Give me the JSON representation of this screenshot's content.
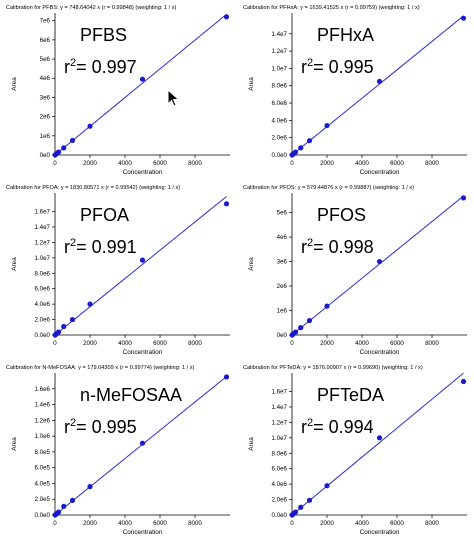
{
  "colors": {
    "line": "#2b2bd6",
    "point": "#1a1acc",
    "axis": "#000000",
    "label": "#000000",
    "background": "#ffffff"
  },
  "icons": {
    "cursor": "mouse-pointer-icon"
  },
  "chart_data": [
    {
      "type": "scatter",
      "header": "Calibration for PFBS: y = 748.64042 x (r = 0.99848)  (weighting: 1 / x)",
      "analyte": "PFBS",
      "r2_prefix": "r",
      "r2_sup": "2",
      "r2_value": "= 0.997",
      "xlabel": "Concentration",
      "ylabel": "Area",
      "xlim": [
        0,
        10000
      ],
      "ylim": [
        0,
        7400000
      ],
      "xticks": [
        0,
        2000,
        4000,
        6000,
        8000
      ],
      "xtick_labels": [
        "0",
        "2000",
        "4000",
        "6000",
        "8000"
      ],
      "yticks": [
        0,
        1000000,
        2000000,
        3000000,
        4000000,
        5000000,
        6000000,
        7000000
      ],
      "ytick_labels": [
        "0e0",
        "1e6",
        "2e6",
        "3e6",
        "4e6",
        "5e6",
        "6e6",
        "7e6"
      ],
      "slope": 748.64042,
      "fit": {
        "x0": 0,
        "x1": 9800
      },
      "points": [
        {
          "x": 10,
          "y": 7000
        },
        {
          "x": 50,
          "y": 37000
        },
        {
          "x": 100,
          "y": 75000
        },
        {
          "x": 200,
          "y": 150000
        },
        {
          "x": 500,
          "y": 370000
        },
        {
          "x": 1000,
          "y": 760000
        },
        {
          "x": 2000,
          "y": 1500000
        },
        {
          "x": 5000,
          "y": 3950000
        },
        {
          "x": 9800,
          "y": 7200000
        }
      ]
    },
    {
      "type": "scatter",
      "header": "Calibration for PFHxA: y = 1639.41525 x (r = 0.99759)  (weighting: 1 / x)",
      "analyte": "PFHxA",
      "r2_prefix": "r",
      "r2_sup": "2",
      "r2_value": "= 0.995",
      "xlabel": "Concentration",
      "ylabel": "Area",
      "xlim": [
        0,
        10000
      ],
      "ylim": [
        0,
        16400000
      ],
      "xticks": [
        0,
        2000,
        4000,
        6000,
        8000
      ],
      "xtick_labels": [
        "0",
        "2000",
        "4000",
        "6000",
        "8000"
      ],
      "yticks": [
        0,
        2000000,
        4000000,
        6000000,
        8000000,
        10000000,
        12000000,
        14000000
      ],
      "ytick_labels": [
        "0.0e0",
        "2.0e6",
        "4.0e6",
        "6.0e6",
        "8.0e6",
        "1.0e7",
        "1.2e7",
        "1.4e7"
      ],
      "slope": 1639.41525,
      "fit": {
        "x0": 0,
        "x1": 9800
      },
      "points": [
        {
          "x": 10,
          "y": 16000
        },
        {
          "x": 50,
          "y": 80000
        },
        {
          "x": 100,
          "y": 160000
        },
        {
          "x": 200,
          "y": 330000
        },
        {
          "x": 500,
          "y": 830000
        },
        {
          "x": 1000,
          "y": 1650000
        },
        {
          "x": 2000,
          "y": 3400000
        },
        {
          "x": 5000,
          "y": 8500000
        },
        {
          "x": 9800,
          "y": 15800000
        }
      ]
    },
    {
      "type": "scatter",
      "header": "Calibration for PFOA: y = 1830.80571 x (r = 0.99542)  (weighting: 1 / x)",
      "analyte": "PFOA",
      "r2_prefix": "r",
      "r2_sup": "2",
      "r2_value": "= 0.991",
      "xlabel": "Concentration",
      "ylabel": "Area",
      "xlim": [
        0,
        10000
      ],
      "ylim": [
        0,
        18400000
      ],
      "xticks": [
        0,
        2000,
        4000,
        6000,
        8000
      ],
      "xtick_labels": [
        "0",
        "2000",
        "4000",
        "6000",
        "8000"
      ],
      "yticks": [
        0,
        2000000,
        4000000,
        6000000,
        8000000,
        10000000,
        12000000,
        14000000,
        16000000
      ],
      "ytick_labels": [
        "0.0e0",
        "2.0e6",
        "4.0e6",
        "6.0e6",
        "8.0e6",
        "1.0e7",
        "1.2e7",
        "1.4e7",
        "1.6e7"
      ],
      "slope": 1830.80571,
      "fit": {
        "x0": 0,
        "x1": 9800
      },
      "points": [
        {
          "x": 10,
          "y": 19000
        },
        {
          "x": 50,
          "y": 95000
        },
        {
          "x": 100,
          "y": 190000
        },
        {
          "x": 200,
          "y": 380000
        },
        {
          "x": 500,
          "y": 1100000
        },
        {
          "x": 1000,
          "y": 2000000
        },
        {
          "x": 2000,
          "y": 4000000
        },
        {
          "x": 5000,
          "y": 9700000
        },
        {
          "x": 9800,
          "y": 17000000
        }
      ]
    },
    {
      "type": "scatter",
      "header": "Calibration for PFOS: y = 579.44876 x (r = 0.99887)  (weighting: 1 / x)",
      "analyte": "PFOS",
      "r2_prefix": "r",
      "r2_sup": "2",
      "r2_value": "= 0.998",
      "xlabel": "Concentration",
      "ylabel": "Area",
      "xlim": [
        0,
        10000
      ],
      "ylim": [
        0,
        5800000
      ],
      "xticks": [
        0,
        2000,
        4000,
        6000,
        8000
      ],
      "xtick_labels": [
        "0",
        "2000",
        "4000",
        "6000",
        "8000"
      ],
      "yticks": [
        0,
        1000000,
        2000000,
        3000000,
        4000000,
        5000000
      ],
      "ytick_labels": [
        "0e0",
        "1e6",
        "2e6",
        "3e6",
        "4e6",
        "5e6"
      ],
      "slope": 579.44876,
      "fit": {
        "x0": 0,
        "x1": 9800
      },
      "points": [
        {
          "x": 10,
          "y": 6000
        },
        {
          "x": 50,
          "y": 29000
        },
        {
          "x": 100,
          "y": 58000
        },
        {
          "x": 200,
          "y": 116000
        },
        {
          "x": 500,
          "y": 300000
        },
        {
          "x": 1000,
          "y": 590000
        },
        {
          "x": 2000,
          "y": 1180000
        },
        {
          "x": 5000,
          "y": 3000000
        },
        {
          "x": 9800,
          "y": 5600000
        }
      ]
    },
    {
      "type": "scatter",
      "header": "Calibration for N-MeFOSAA: y = 179.04309 x (r = 0.99774)  (weighting: 1 / x)",
      "analyte": "n-MeFOSAA",
      "r2_prefix": "r",
      "r2_sup": "2",
      "r2_value": "= 0.995",
      "xlabel": "Concentration",
      "ylabel": "Area",
      "xlim": [
        0,
        10000
      ],
      "ylim": [
        0,
        1800000
      ],
      "xticks": [
        0,
        2000,
        4000,
        6000,
        8000
      ],
      "xtick_labels": [
        "0",
        "2000",
        "4000",
        "6000",
        "8000"
      ],
      "yticks": [
        0,
        200000,
        400000,
        600000,
        800000,
        1000000,
        1200000,
        1400000,
        1600000
      ],
      "ytick_labels": [
        "0.0e0",
        "2.0e5",
        "4.0e5",
        "6.0e5",
        "8.0e5",
        "1.0e6",
        "1.2e6",
        "1.4e6",
        "1.6e6"
      ],
      "slope": 179.04309,
      "fit": {
        "x0": 0,
        "x1": 9800
      },
      "points": [
        {
          "x": 10,
          "y": 1800
        },
        {
          "x": 50,
          "y": 9000
        },
        {
          "x": 100,
          "y": 18000
        },
        {
          "x": 200,
          "y": 36000
        },
        {
          "x": 500,
          "y": 110000
        },
        {
          "x": 1000,
          "y": 185000
        },
        {
          "x": 2000,
          "y": 360000
        },
        {
          "x": 5000,
          "y": 910000
        },
        {
          "x": 9800,
          "y": 1750000
        }
      ]
    },
    {
      "type": "scatter",
      "header": "Calibration for PFTeDA: y = 1876.00907 x (r = 0.99690)  (weighting: 1 / x)",
      "analyte": "PFTeDA",
      "r2_prefix": "r",
      "r2_sup": "2",
      "r2_value": "= 0.994",
      "xlabel": "Concentration",
      "ylabel": "Area",
      "xlim": [
        0,
        10000
      ],
      "ylim": [
        0,
        18400000
      ],
      "xticks": [
        0,
        2000,
        4000,
        6000,
        8000
      ],
      "xtick_labels": [
        "0",
        "2000",
        "4000",
        "6000",
        "8000"
      ],
      "yticks": [
        0,
        2000000,
        4000000,
        6000000,
        8000000,
        10000000,
        12000000,
        14000000,
        16000000
      ],
      "ytick_labels": [
        "0.0e0",
        "2.0e6",
        "4.0e6",
        "6.0e6",
        "8.0e6",
        "1.0e7",
        "1.2e7",
        "1.4e7",
        "1.6e7"
      ],
      "slope": 1876.00907,
      "fit": {
        "x0": 0,
        "x1": 9800
      },
      "points": [
        {
          "x": 10,
          "y": 19000
        },
        {
          "x": 50,
          "y": 94000
        },
        {
          "x": 100,
          "y": 190000
        },
        {
          "x": 200,
          "y": 380000
        },
        {
          "x": 500,
          "y": 1000000
        },
        {
          "x": 1000,
          "y": 1900000
        },
        {
          "x": 2000,
          "y": 3800000
        },
        {
          "x": 5000,
          "y": 10000000
        },
        {
          "x": 9800,
          "y": 17300000
        }
      ]
    }
  ]
}
